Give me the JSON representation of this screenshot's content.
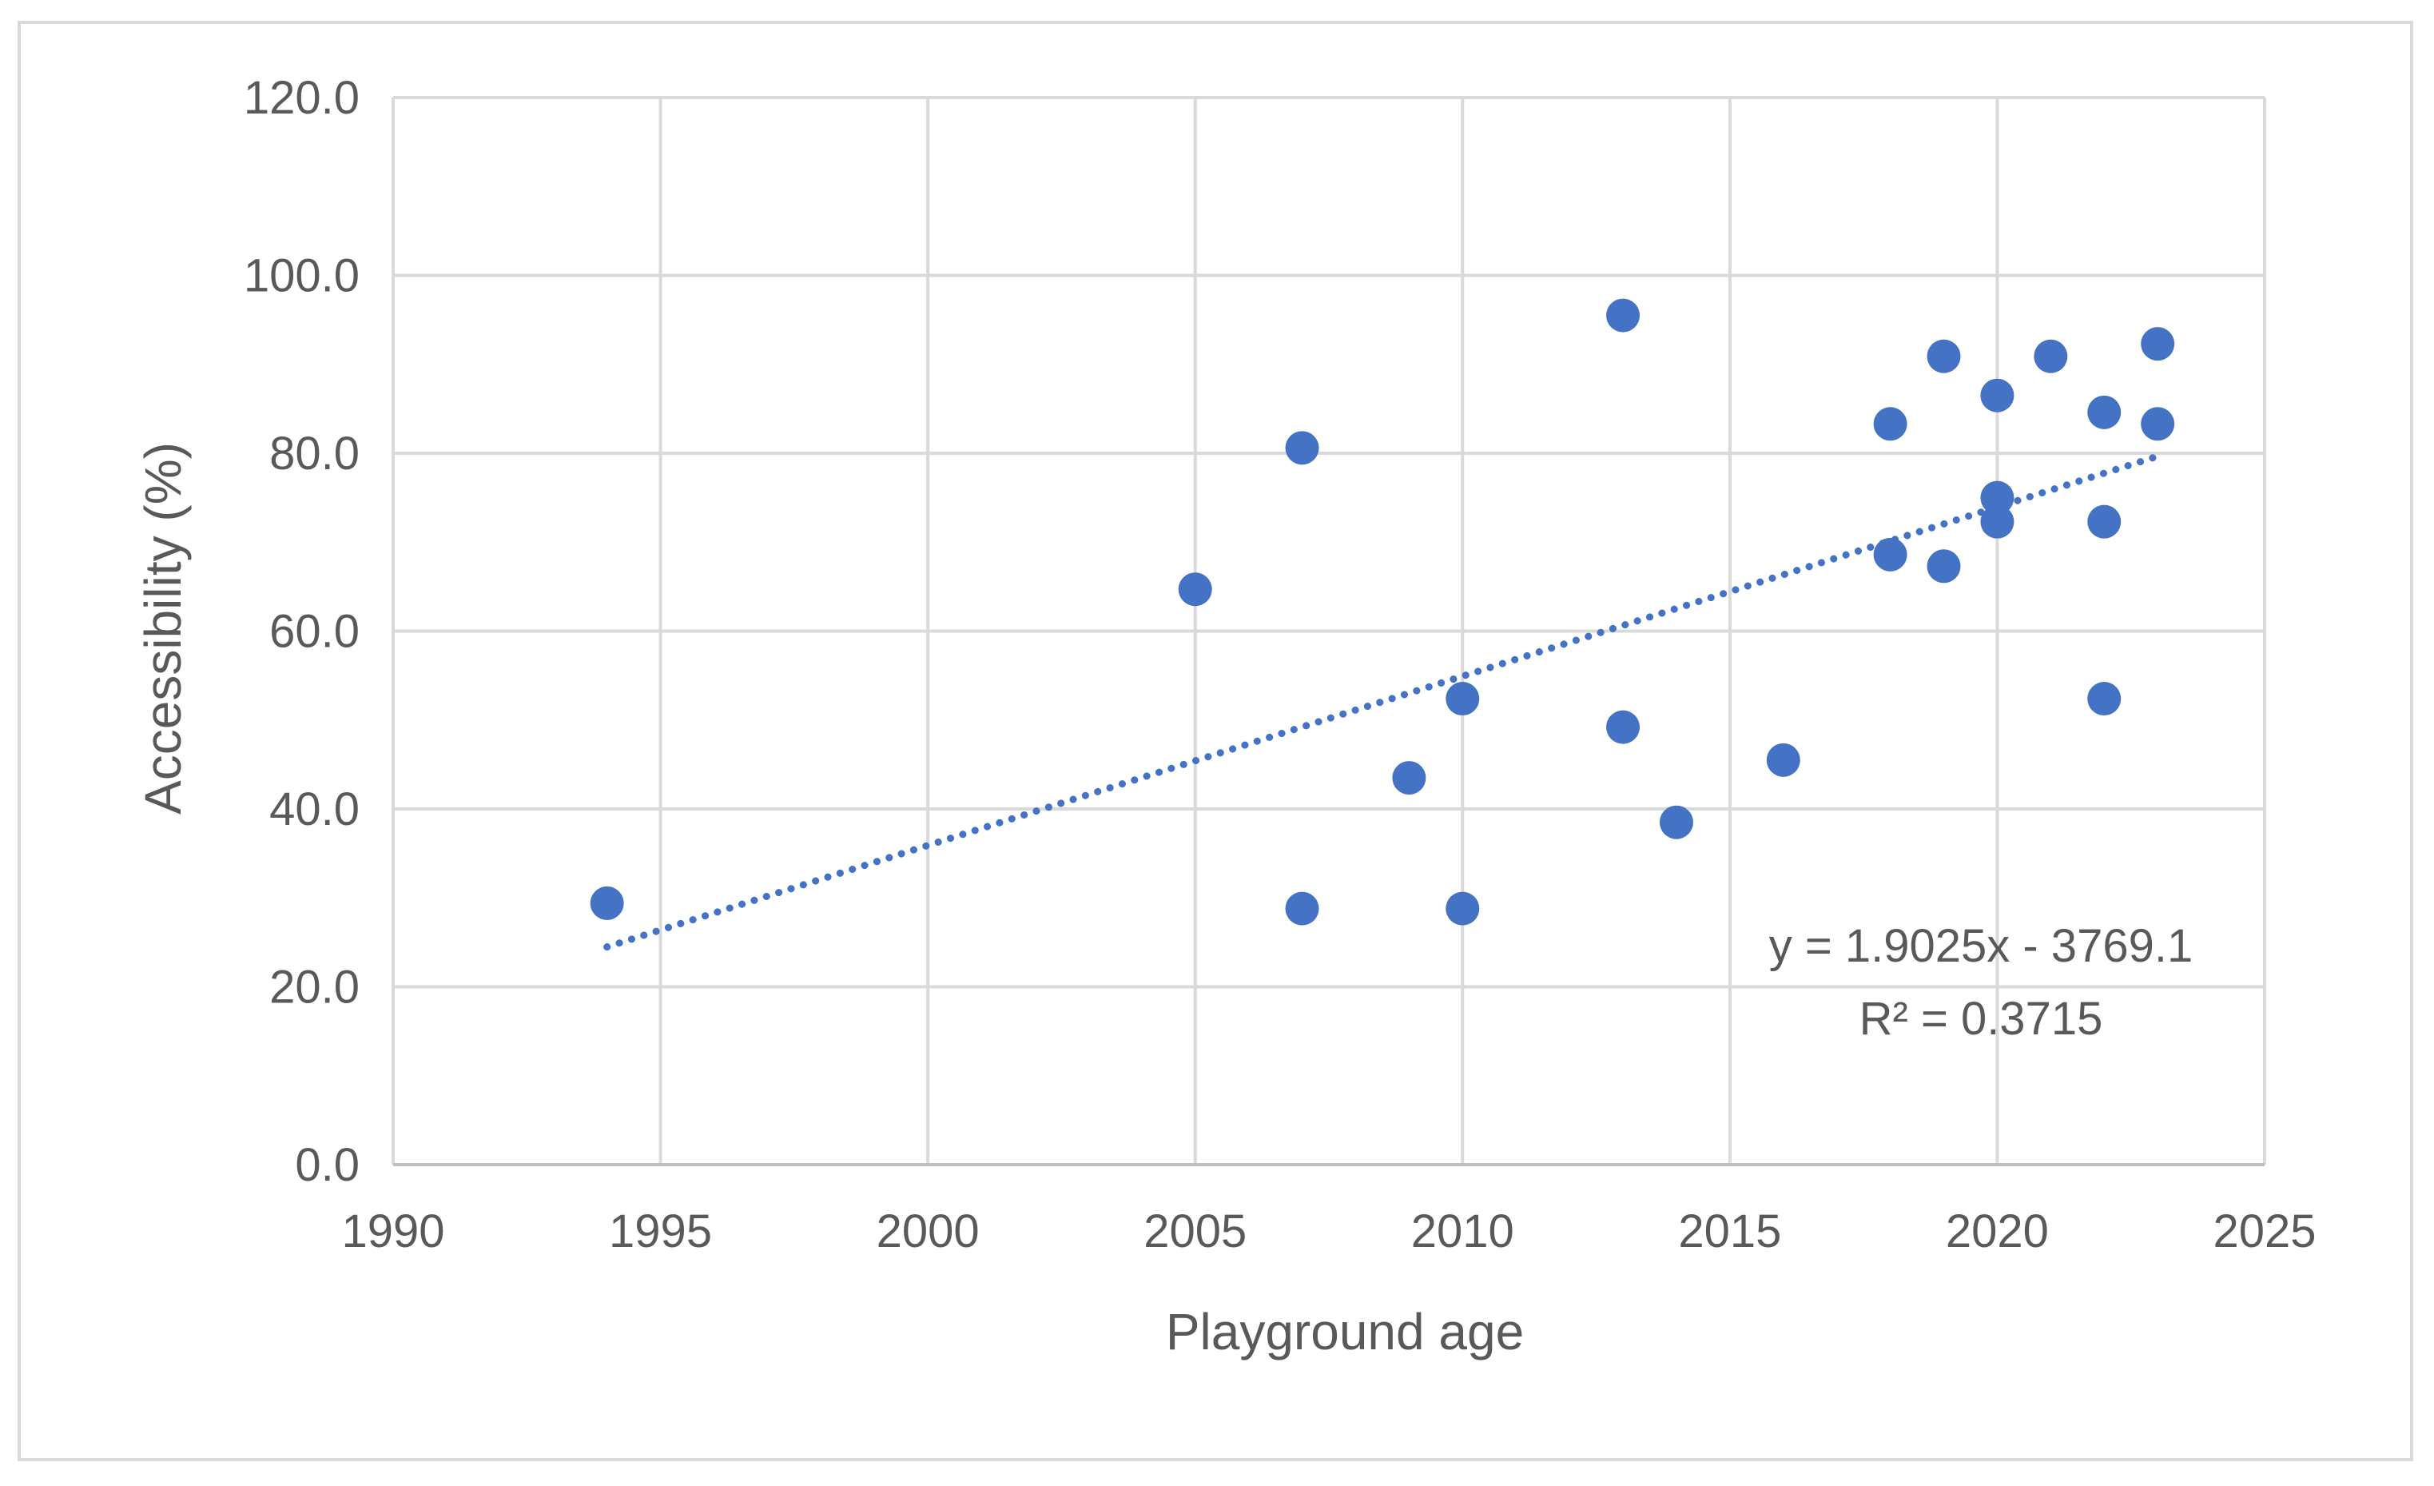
{
  "chart_data": {
    "type": "scatter",
    "title": "",
    "xlabel": "Playground age",
    "ylabel": "Accessibility (%)",
    "xlim": [
      1990,
      2025
    ],
    "ylim": [
      0,
      120
    ],
    "x_ticks": [
      "1990",
      "1995",
      "2000",
      "2005",
      "2010",
      "2015",
      "2020",
      "2025"
    ],
    "y_ticks": [
      "0.0",
      "20.0",
      "40.0",
      "60.0",
      "80.0",
      "100.0",
      "120.0"
    ],
    "grid": true,
    "legend": false,
    "marker_color": "#4472C4",
    "points": [
      {
        "x": 1994,
        "y": 29.4
      },
      {
        "x": 2005,
        "y": 64.7
      },
      {
        "x": 2007,
        "y": 80.6
      },
      {
        "x": 2007,
        "y": 28.8
      },
      {
        "x": 2009,
        "y": 43.5
      },
      {
        "x": 2010,
        "y": 52.4
      },
      {
        "x": 2010,
        "y": 28.8
      },
      {
        "x": 2013,
        "y": 95.5
      },
      {
        "x": 2013,
        "y": 49.2
      },
      {
        "x": 2014,
        "y": 38.5
      },
      {
        "x": 2016,
        "y": 45.5
      },
      {
        "x": 2018,
        "y": 83.3
      },
      {
        "x": 2018,
        "y": 68.6
      },
      {
        "x": 2019,
        "y": 90.9
      },
      {
        "x": 2019,
        "y": 67.3
      },
      {
        "x": 2020,
        "y": 86.5
      },
      {
        "x": 2020,
        "y": 75.0
      },
      {
        "x": 2020,
        "y": 72.3
      },
      {
        "x": 2021,
        "y": 90.9
      },
      {
        "x": 2022,
        "y": 84.6
      },
      {
        "x": 2022,
        "y": 72.3
      },
      {
        "x": 2022,
        "y": 52.4
      },
      {
        "x": 2023,
        "y": 92.3
      },
      {
        "x": 2023,
        "y": 83.3
      }
    ],
    "trendline": {
      "type": "linear",
      "style": "dotted",
      "slope": 1.9025,
      "intercept": -3769.1,
      "x_range": [
        1994,
        2023
      ],
      "equation": "y = 1.9025x - 3769.1",
      "r_squared": "R² = 0.3715"
    }
  }
}
